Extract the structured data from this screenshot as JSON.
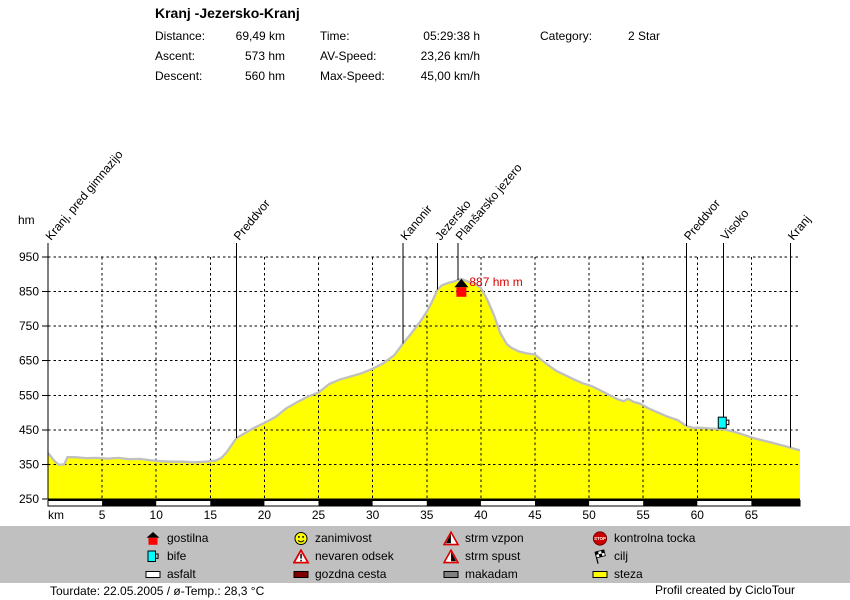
{
  "header": {
    "title": "Kranj -Jezersko-Kranj",
    "stats_col1": [
      {
        "label": "Distance:",
        "value": "69,49 km"
      },
      {
        "label": "Ascent:",
        "value": "573 hm"
      },
      {
        "label": "Descent:",
        "value": "560 hm"
      }
    ],
    "stats_col2": [
      {
        "label": "Time:",
        "value": "05:29:38 h"
      },
      {
        "label": "AV-Speed:",
        "value": "23,26 km/h"
      },
      {
        "label": "Max-Speed:",
        "value": "45,00 km/h"
      }
    ],
    "stats_col3": [
      {
        "label": "Category:",
        "value": "2 Star"
      }
    ]
  },
  "chart_data": {
    "type": "area",
    "title": "Kranj -Jezersko-Kranj",
    "xlabel": "km",
    "ylabel": "hm",
    "xlim": [
      0,
      69.49
    ],
    "ylim": [
      250,
      950
    ],
    "x_ticks": [
      5,
      10,
      15,
      20,
      25,
      30,
      35,
      40,
      45,
      50,
      55,
      60,
      65
    ],
    "y_ticks": [
      250,
      350,
      450,
      550,
      650,
      750,
      850,
      950
    ],
    "grid": "dashed",
    "fill_color": "#ffff00",
    "edge_color": "#c0c0c0",
    "profile_km_hm": [
      [
        0,
        383
      ],
      [
        0.6,
        360
      ],
      [
        1.0,
        349
      ],
      [
        1.5,
        350
      ],
      [
        1.8,
        371
      ],
      [
        2.5,
        371
      ],
      [
        3.5,
        368
      ],
      [
        4.5,
        369
      ],
      [
        5.5,
        367
      ],
      [
        6.5,
        369
      ],
      [
        7.5,
        365
      ],
      [
        8.5,
        366
      ],
      [
        9.5,
        362
      ],
      [
        10.5,
        359
      ],
      [
        11.5,
        358
      ],
      [
        12.5,
        358
      ],
      [
        13.5,
        356
      ],
      [
        14.5,
        358
      ],
      [
        15.5,
        361
      ],
      [
        16,
        368
      ],
      [
        16.5,
        385
      ],
      [
        17,
        408
      ],
      [
        17.4,
        426
      ],
      [
        18,
        437
      ],
      [
        19,
        455
      ],
      [
        20,
        470
      ],
      [
        21,
        487
      ],
      [
        22,
        512
      ],
      [
        23,
        530
      ],
      [
        24,
        546
      ],
      [
        25,
        558
      ],
      [
        26,
        583
      ],
      [
        27,
        596
      ],
      [
        28,
        605
      ],
      [
        29,
        614
      ],
      [
        30,
        627
      ],
      [
        31,
        643
      ],
      [
        32,
        666
      ],
      [
        32.8,
        700
      ],
      [
        33.5,
        726
      ],
      [
        34.4,
        763
      ],
      [
        35,
        792
      ],
      [
        35.5,
        822
      ],
      [
        36,
        856
      ],
      [
        36.4,
        868
      ],
      [
        37,
        875
      ],
      [
        37.6,
        880
      ],
      [
        38.2,
        887
      ],
      [
        38.8,
        879
      ],
      [
        39.4,
        874
      ],
      [
        40,
        861
      ],
      [
        40.6,
        826
      ],
      [
        41.2,
        782
      ],
      [
        41.8,
        730
      ],
      [
        42.4,
        698
      ],
      [
        42.8,
        688
      ],
      [
        43.5,
        677
      ],
      [
        44.3,
        671
      ],
      [
        45,
        668
      ],
      [
        45.6,
        652
      ],
      [
        46.2,
        638
      ],
      [
        47,
        620
      ],
      [
        47.8,
        608
      ],
      [
        48.6,
        596
      ],
      [
        49.4,
        585
      ],
      [
        50.2,
        577
      ],
      [
        51,
        565
      ],
      [
        51.8,
        552
      ],
      [
        52.6,
        539
      ],
      [
        53.2,
        533
      ],
      [
        53.6,
        540
      ],
      [
        54.1,
        531
      ],
      [
        54.7,
        526
      ],
      [
        55.5,
        512
      ],
      [
        56.3,
        501
      ],
      [
        57.2,
        489
      ],
      [
        58.2,
        478
      ],
      [
        59,
        461
      ],
      [
        59.6,
        456
      ],
      [
        60.4,
        456
      ],
      [
        61.2,
        454
      ],
      [
        62.4,
        452
      ],
      [
        63.2,
        446
      ],
      [
        64,
        439
      ],
      [
        65,
        428
      ],
      [
        66,
        420
      ],
      [
        67,
        412
      ],
      [
        68,
        404
      ],
      [
        69,
        395
      ],
      [
        69.49,
        391
      ]
    ],
    "waypoints": [
      {
        "name": "Kranj, pred gimnazijo",
        "km": 0
      },
      {
        "name": "Preddvor",
        "km": 17.4
      },
      {
        "name": "Kanonir",
        "km": 32.8
      },
      {
        "name": "Jezersko",
        "km": 36.0
      },
      {
        "name": "Planšarsko jezero",
        "km": 37.9
      },
      {
        "name": "Preddvor",
        "km": 59.0
      },
      {
        "name": "Visoko",
        "km": 62.4
      },
      {
        "name": "Kranj",
        "km": 68.6
      }
    ],
    "peak": {
      "label": "887 hm m",
      "km": 38.2,
      "hm": 887,
      "icon": "gostilna-icon",
      "text_color": "#dd0000"
    },
    "markers": [
      {
        "icon": "bife-icon",
        "km": 62.4,
        "hm": 452
      }
    ],
    "ruler_black_segments_km": [
      [
        5,
        10
      ],
      [
        15,
        20
      ],
      [
        25,
        30
      ],
      [
        35,
        40
      ],
      [
        45,
        50
      ],
      [
        55,
        60
      ],
      [
        65,
        69.49
      ]
    ]
  },
  "legend": {
    "columns": [
      [
        {
          "icon": "gostilna-icon",
          "label": "gostilna"
        },
        {
          "icon": "bife-icon",
          "label": "bife"
        },
        {
          "icon": "asfalt-icon",
          "label": "asfalt"
        }
      ],
      [
        {
          "icon": "zanimivost-icon",
          "label": "zanimivost"
        },
        {
          "icon": "nevaren-odsek-icon",
          "label": "nevaren odsek"
        },
        {
          "icon": "gozdna-cesta-icon",
          "label": "gozdna cesta"
        }
      ],
      [
        {
          "icon": "strm-vzpon-icon",
          "label": "strm vzpon"
        },
        {
          "icon": "strm-spust-icon",
          "label": "strm spust"
        },
        {
          "icon": "makadam-icon",
          "label": "makadam"
        }
      ],
      [
        {
          "icon": "kontrolna-tocka-icon",
          "label": "kontrolna tocka"
        },
        {
          "icon": "cilj-icon",
          "label": "cilj"
        },
        {
          "icon": "steza-icon",
          "label": "steza"
        }
      ]
    ]
  },
  "footer": {
    "left": "Tourdate: 22.05.2005  /  ø-Temp.: 28,3 °C",
    "right": "Profil created by CicloTour"
  },
  "colors": {
    "legend_bg": "#c0c0c0",
    "profile_fill": "#ffff00",
    "profile_edge": "#c0c0c0",
    "annotation_red": "#dd0000",
    "gozdna_cesta": "#800000",
    "makadam": "#808080",
    "bife_cyan": "#00ffff"
  }
}
